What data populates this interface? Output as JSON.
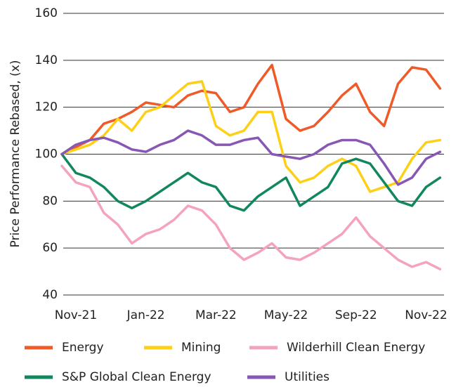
{
  "chart_data": {
    "type": "line",
    "ylabel": "Price Performance Rebased, (x)",
    "categories": [
      null,
      "Nov-21",
      null,
      null,
      null,
      null,
      "Jan-22",
      null,
      null,
      null,
      null,
      "Mar-22",
      null,
      null,
      null,
      null,
      "May-22",
      null,
      null,
      null,
      null,
      "Sep-22",
      null,
      null,
      null,
      null,
      "Nov-22",
      null
    ],
    "series": [
      {
        "name": "Energy",
        "color": "#f05a28",
        "values": [
          100,
          103,
          106,
          113,
          115,
          118,
          122,
          121,
          120,
          125,
          127,
          126,
          118,
          120,
          130,
          138,
          115,
          110,
          112,
          118,
          125,
          130,
          118,
          112,
          130,
          137,
          136,
          128
        ]
      },
      {
        "name": "Mining",
        "color": "#fdd017",
        "values": [
          100,
          102,
          104,
          108,
          115,
          110,
          118,
          120,
          125,
          130,
          131,
          112,
          108,
          110,
          118,
          118,
          95,
          88,
          90,
          95,
          98,
          95,
          84,
          86,
          88,
          98,
          105,
          106
        ]
      },
      {
        "name": "Wilderhill Clean Energy",
        "color": "#f4a3bd",
        "values": [
          95,
          88,
          86,
          75,
          70,
          62,
          66,
          68,
          72,
          78,
          76,
          70,
          60,
          55,
          58,
          62,
          56,
          55,
          58,
          62,
          66,
          73,
          65,
          60,
          55,
          52,
          54,
          51
        ]
      },
      {
        "name": "S&P Global Clean Energy",
        "color": "#11875b",
        "values": [
          100,
          92,
          90,
          86,
          80,
          77,
          80,
          84,
          88,
          92,
          88,
          86,
          78,
          76,
          82,
          86,
          90,
          78,
          82,
          86,
          96,
          98,
          96,
          88,
          80,
          78,
          86,
          90
        ]
      },
      {
        "name": "Utilities",
        "color": "#8757b3",
        "values": [
          100,
          104,
          106,
          107,
          105,
          102,
          101,
          104,
          106,
          110,
          108,
          104,
          104,
          106,
          107,
          100,
          99,
          98,
          100,
          104,
          106,
          106,
          104,
          96,
          87,
          90,
          98,
          101
        ]
      }
    ],
    "ylim": [
      40,
      160
    ],
    "yticks": [
      40,
      60,
      80,
      100,
      120,
      140,
      160
    ],
    "grid": true
  }
}
